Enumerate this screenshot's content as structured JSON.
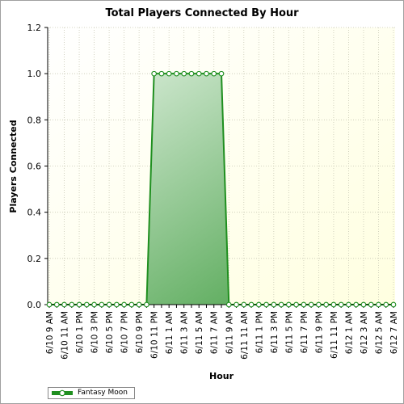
{
  "chart_data": {
    "type": "area",
    "title": "Total Players Connected By Hour",
    "xlabel": "Hour",
    "ylabel": "Players Connected",
    "ylim": [
      0,
      1.2
    ],
    "yticks": [
      "0.0",
      "0.2",
      "0.4",
      "0.6",
      "0.8",
      "1.0",
      "1.2"
    ],
    "grid": true,
    "legend_position": "bottom-left",
    "x": [
      "6/10 9 AM",
      "6/10 10 AM",
      "6/10 11 AM",
      "6/10 12 PM",
      "6/10 1 PM",
      "6/10 2 PM",
      "6/10 3 PM",
      "6/10 4 PM",
      "6/10 5 PM",
      "6/10 6 PM",
      "6/10 7 PM",
      "6/10 8 PM",
      "6/10 9 PM",
      "6/10 10 PM",
      "6/10 11 PM",
      "6/11 12 AM",
      "6/11 1 AM",
      "6/11 2 AM",
      "6/11 3 AM",
      "6/11 4 AM",
      "6/11 5 AM",
      "6/11 6 AM",
      "6/11 7 AM",
      "6/11 8 AM",
      "6/11 9 AM",
      "6/11 10 AM",
      "6/11 11 AM",
      "6/11 12 PM",
      "6/11 1 PM",
      "6/11 2 PM",
      "6/11 3 PM",
      "6/11 4 PM",
      "6/11 5 PM",
      "6/11 6 PM",
      "6/11 7 PM",
      "6/11 8 PM",
      "6/11 9 PM",
      "6/11 10 PM",
      "6/11 11 PM",
      "6/12 12 AM",
      "6/12 1 AM",
      "6/12 2 AM",
      "6/12 3 AM",
      "6/12 4 AM",
      "6/12 5 AM",
      "6/12 6 AM",
      "6/12 7 AM"
    ],
    "x_tick_labels": [
      "6/10 9 AM",
      "6/10 11 AM",
      "6/10 1 PM",
      "6/10 3 PM",
      "6/10 5 PM",
      "6/10 7 PM",
      "6/10 9 PM",
      "6/10 11 PM",
      "6/11 1 AM",
      "6/11 3 AM",
      "6/11 5 AM",
      "6/11 7 AM",
      "6/11 9 AM",
      "6/11 11 AM",
      "6/11 1 PM",
      "6/11 3 PM",
      "6/11 5 PM",
      "6/11 7 PM",
      "6/11 9 PM",
      "6/11 11 PM",
      "6/12 1 AM",
      "6/12 3 AM",
      "6/12 5 AM",
      "6/12 7 AM"
    ],
    "series": [
      {
        "name": "Fantasy Moon",
        "values": [
          0,
          0,
          0,
          0,
          0,
          0,
          0,
          0,
          0,
          0,
          0,
          0,
          0,
          0,
          1,
          1,
          1,
          1,
          1,
          1,
          1,
          1,
          1,
          1,
          0,
          0,
          0,
          0,
          0,
          0,
          0,
          0,
          0,
          0,
          0,
          0,
          0,
          0,
          0,
          0,
          0,
          0,
          0,
          0,
          0,
          0,
          0
        ]
      }
    ],
    "colors": {
      "plot_bg": "#fffff0",
      "line": "#1f8f1f",
      "fill_light": "#e4f2e4",
      "fill_dark": "#3a9a3a",
      "grid": "#c8c8b4"
    }
  }
}
